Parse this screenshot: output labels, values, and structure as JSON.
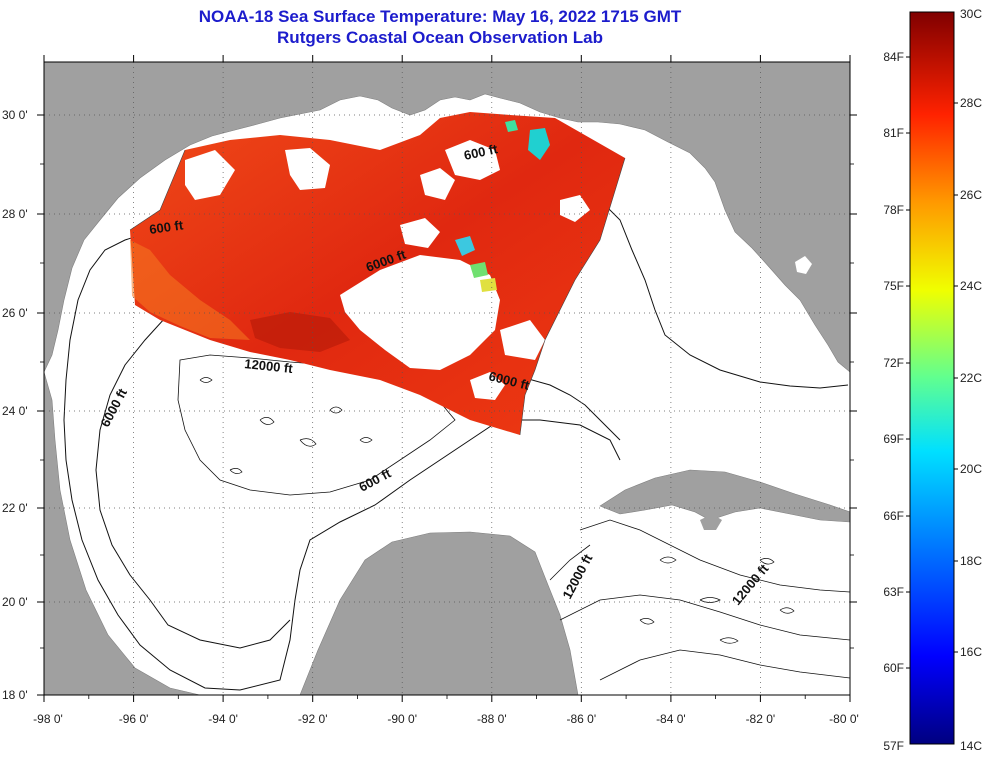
{
  "title": {
    "line1": "NOAA-18 Sea Surface Temperature:  May 16, 2022 1715 GMT",
    "line2": "Rutgers Coastal Ocean Observation Lab"
  },
  "axes": {
    "longitude_labels": [
      "-98 0'",
      "-96 0'",
      "-94 0'",
      "-92 0'",
      "-90 0'",
      "-88 0'",
      "-86 0'",
      "-84 0'",
      "-82 0'",
      "-80 0'"
    ],
    "latitude_labels": [
      "30 0'",
      "28 0'",
      "26 0'",
      "24 0'",
      "22 0'",
      "20 0'",
      "18 0'"
    ]
  },
  "contour_labels": {
    "north_600": "600 ft",
    "northeast_600": "600 ft",
    "north_6000": "6000 ft",
    "center_12000": "12000 ft",
    "west_6000": "6000 ft",
    "east_6000": "6000 ft",
    "south_600": "600 ft",
    "strait_12000": "12000 ft",
    "caribbean_12000": "12000 ft"
  },
  "colorbar": {
    "celsius": [
      "30C",
      "28C",
      "26C",
      "24C",
      "22C",
      "20C",
      "18C",
      "16C",
      "14C"
    ],
    "fahrenheit": [
      "84F",
      "81F",
      "78F",
      "75F",
      "72F",
      "69F",
      "66F",
      "63F",
      "60F",
      "57F"
    ],
    "colors": [
      "#ffffff",
      "#a0a0a0",
      "#d92f12",
      "#1c1ccc"
    ]
  }
}
